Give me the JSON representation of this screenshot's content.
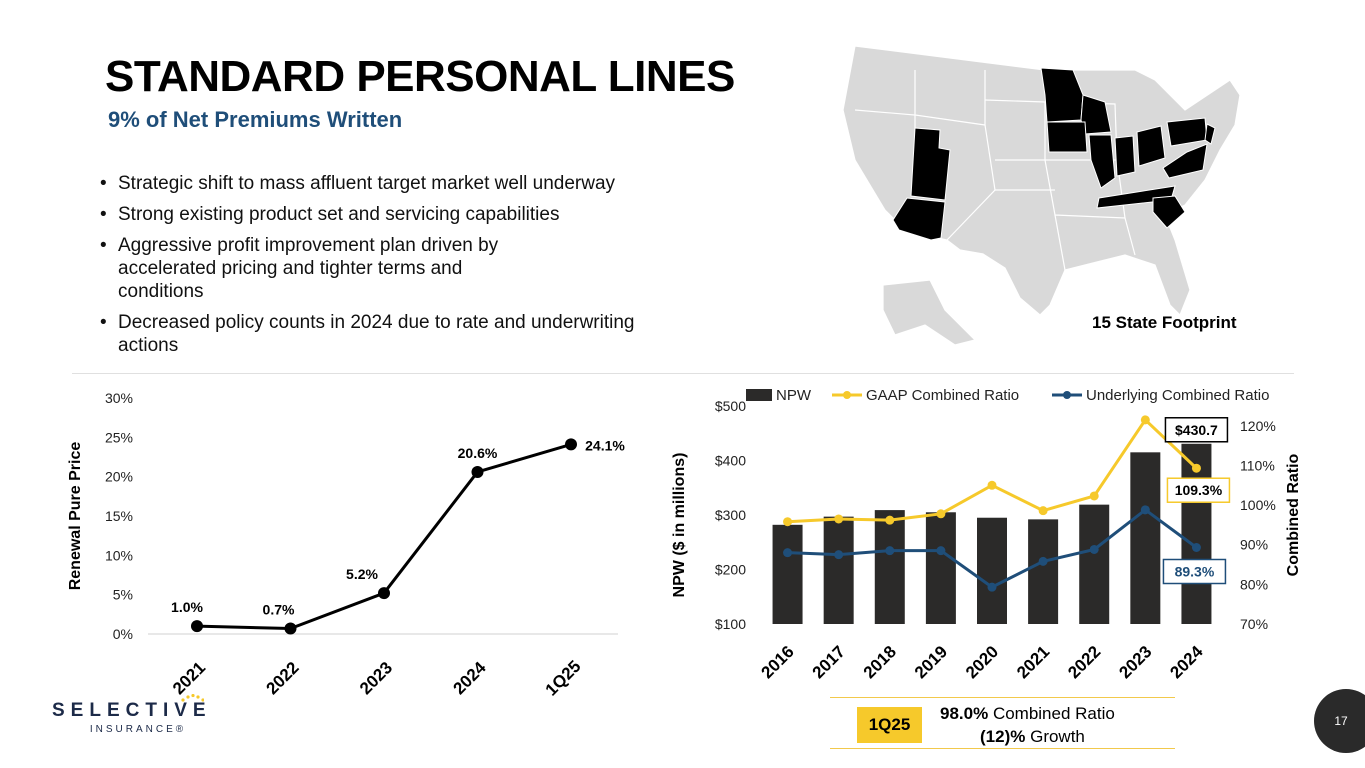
{
  "header": {
    "title": "STANDARD PERSONAL LINES",
    "subtitle": "9% of Net Premiums Written"
  },
  "bullets": [
    "Strategic shift to mass affluent target market well underway",
    "Strong existing product set and servicing capabilities",
    "Aggressive profit improvement plan driven by accelerated pricing and tighter terms and conditions",
    "Decreased policy counts in 2024 due to rate and underwriting actions"
  ],
  "map": {
    "caption": "15 State Footprint",
    "highlight_color": "#000000",
    "base_color": "#d9d9d9"
  },
  "summary": {
    "badge": "1Q25",
    "line1_value": "98.0%",
    "line1_text": "Combined Ratio",
    "line2_value": "(12)%",
    "line2_text": "Growth"
  },
  "logo": {
    "name": "SELECTIVE",
    "sub": "INSURANCE®"
  },
  "page_number": "17",
  "colors": {
    "npw_bar": "#2b2a29",
    "gaap_line": "#f6c92b",
    "underlying_line": "#1f4e79",
    "subtitle": "#1f4e79"
  },
  "chart_data": [
    {
      "type": "line",
      "categories": [
        "2021",
        "2022",
        "2023",
        "2024",
        "1Q25"
      ],
      "values": [
        1.0,
        0.7,
        5.2,
        20.6,
        24.1
      ],
      "value_labels": [
        "1.0%",
        "0.7%",
        "5.2%",
        "20.6%",
        "24.1%"
      ],
      "ylabel": "Renewal Pure Price",
      "ylim": [
        0,
        30
      ],
      "yticks": [
        "0%",
        "5%",
        "10%",
        "15%",
        "20%",
        "25%",
        "30%"
      ],
      "grid": false
    },
    {
      "type": "bar",
      "categories": [
        "2016",
        "2017",
        "2018",
        "2019",
        "2020",
        "2021",
        "2022",
        "2023",
        "2024"
      ],
      "ylabel": "NPW ($ in millions)",
      "y2label": "Combined Ratio",
      "ylim": [
        100,
        500
      ],
      "yticks": [
        "$100",
        "$200",
        "$300",
        "$400",
        "$500"
      ],
      "y2lim": [
        70,
        125
      ],
      "y2ticks": [
        "70%",
        "80%",
        "90%",
        "100%",
        "110%",
        "120%"
      ],
      "legend_position": "top",
      "series": [
        {
          "name": "NPW",
          "kind": "bar",
          "values": [
            282,
            297,
            309,
            305,
            295,
            292,
            319,
            415,
            430.7
          ]
        },
        {
          "name": "GAAP Combined Ratio",
          "kind": "line",
          "axis": "right",
          "values": [
            95.8,
            96.5,
            96.2,
            97.8,
            105.0,
            98.6,
            102.3,
            121.5,
            109.3
          ]
        },
        {
          "name": "Underlying Combined Ratio",
          "kind": "line",
          "axis": "right",
          "values": [
            88.0,
            87.5,
            88.5,
            88.5,
            79.3,
            85.8,
            88.8,
            98.8,
            89.3
          ]
        }
      ],
      "annotations": [
        "$430.7",
        "109.3%",
        "89.3%"
      ]
    }
  ]
}
